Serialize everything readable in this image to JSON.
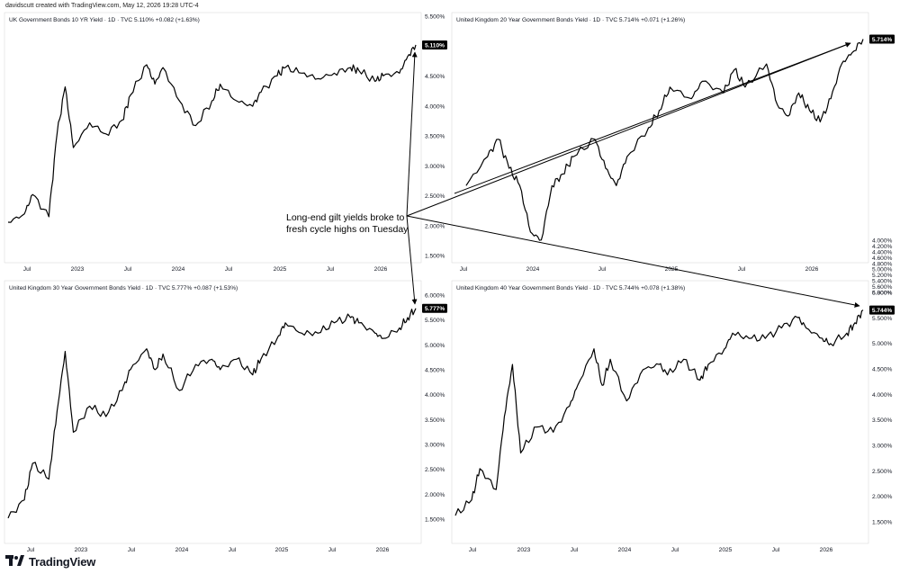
{
  "header": "davidscutt created with TradingView.com, May 12, 2026 19:28 UTC-4",
  "footer_brand": "TradingView",
  "annotation": [
    "Long-end gilt yields broke to",
    "fresh cycle highs on Tuesday"
  ],
  "colors": {
    "line": "#000000",
    "grid": "#e6e6e6",
    "badge_bg": "#000000",
    "badge_fg": "#ffffff",
    "text": "#131722"
  },
  "chart_data": [
    {
      "type": "line",
      "title": "UK Government Bonds 10 YR Yield · 1D · TVC  5.110%  +0.082 (+1.63%)",
      "x_ticks": [
        "Jul",
        "2023",
        "Jul",
        "2024",
        "Jul",
        "2025",
        "Jul",
        "2026"
      ],
      "y_ticks": [
        "5.500%",
        "5.000%",
        "4.500%",
        "4.000%",
        "3.500%",
        "3.000%",
        "2.500%",
        "2.000%",
        "1.500%"
      ],
      "ylim": [
        1.2,
        5.5
      ],
      "last_label": "5.110%",
      "x": [
        "2022-03",
        "2022-05",
        "2022-06",
        "2022-08",
        "2022-09",
        "2022-10",
        "2022-11",
        "2023-01",
        "2023-03",
        "2023-05",
        "2023-06",
        "2023-08",
        "2023-09",
        "2023-10",
        "2023-12",
        "2024-02",
        "2024-04",
        "2024-05",
        "2024-07",
        "2024-09",
        "2024-10",
        "2024-12",
        "2025-01",
        "2025-03",
        "2025-05",
        "2025-07",
        "2025-09",
        "2025-10",
        "2025-12",
        "2026-01",
        "2026-03",
        "2026-04",
        "2026-05"
      ],
      "values": [
        1.9,
        2.05,
        2.4,
        2.0,
        3.5,
        4.35,
        3.25,
        3.7,
        3.5,
        3.75,
        4.2,
        4.75,
        4.4,
        4.7,
        4.1,
        3.65,
        4.1,
        4.4,
        4.1,
        4.0,
        4.25,
        4.55,
        4.7,
        4.6,
        4.5,
        4.6,
        4.7,
        4.65,
        4.45,
        4.55,
        4.6,
        4.9,
        5.11
      ]
    },
    {
      "type": "line",
      "title": "United Kingdom 20 Year Government Bonds Yield · 1D · TVC  5.714%  +0.071 (+1.26%)",
      "x_ticks": [
        "Jul",
        "2024",
        "Jul",
        "2025",
        "Jul",
        "2026"
      ],
      "y_ticks": [
        "5.800%",
        "5.600%",
        "5.400%",
        "5.200%",
        "5.000%",
        "4.800%",
        "4.600%",
        "4.400%",
        "4.200%",
        "4.000%"
      ],
      "ylim": [
        3.8,
        5.85
      ],
      "last_label": "5.714%",
      "x": [
        "2023-04",
        "2023-06",
        "2023-07",
        "2023-08",
        "2023-09",
        "2023-10",
        "2023-11",
        "2023-12",
        "2024-01",
        "2024-02",
        "2024-04",
        "2024-05",
        "2024-06",
        "2024-07",
        "2024-09",
        "2024-10",
        "2024-11",
        "2025-01",
        "2025-02",
        "2025-04",
        "2025-05",
        "2025-06",
        "2025-08",
        "2025-09",
        "2025-10",
        "2025-11",
        "2025-12",
        "2026-01",
        "2026-02",
        "2026-03",
        "2026-04",
        "2026-05"
      ],
      "values": [
        4.45,
        4.7,
        4.85,
        4.6,
        4.45,
        4.05,
        3.98,
        4.45,
        4.55,
        4.7,
        4.85,
        4.6,
        4.45,
        4.7,
        4.95,
        5.1,
        5.3,
        5.2,
        5.35,
        5.25,
        5.45,
        5.3,
        5.5,
        5.15,
        5.05,
        5.25,
        5.1,
        5.0,
        5.2,
        5.5,
        5.6,
        5.714
      ]
    },
    {
      "type": "line",
      "title": "United Kingdom 30 Year Government Bonds Yield · 1D · TVC  5.777%  +0.087 (+1.53%)",
      "x_ticks": [
        "Jul",
        "2023",
        "Jul",
        "2024",
        "Jul",
        "2025",
        "Jul",
        "2026"
      ],
      "y_ticks": [
        "6.000%",
        "5.500%",
        "5.000%",
        "4.500%",
        "4.000%",
        "3.500%",
        "3.000%",
        "2.500%",
        "2.000%",
        "1.500%"
      ],
      "ylim": [
        1.3,
        6.1
      ],
      "last_label": "5.777%",
      "x": [
        "2022-03",
        "2022-05",
        "2022-06",
        "2022-08",
        "2022-09",
        "2022-10",
        "2022-11",
        "2023-01",
        "2023-03",
        "2023-05",
        "2023-06",
        "2023-08",
        "2023-09",
        "2023-10",
        "2023-12",
        "2024-02",
        "2024-04",
        "2024-05",
        "2024-07",
        "2024-09",
        "2024-10",
        "2024-12",
        "2025-01",
        "2025-03",
        "2025-05",
        "2025-07",
        "2025-09",
        "2025-10",
        "2025-12",
        "2026-01",
        "2026-03",
        "2026-04",
        "2026-05"
      ],
      "values": [
        1.75,
        2.1,
        2.8,
        2.5,
        3.8,
        4.95,
        3.4,
        3.9,
        3.7,
        4.2,
        4.6,
        5.0,
        4.6,
        4.9,
        4.2,
        4.7,
        4.8,
        4.6,
        4.8,
        4.5,
        4.8,
        5.2,
        5.5,
        5.3,
        5.3,
        5.5,
        5.6,
        5.5,
        5.3,
        5.2,
        5.4,
        5.6,
        5.777
      ]
    },
    {
      "type": "line",
      "title": "United Kingdom 40 Year Government Bonds Yield · 1D · TVC  5.744%  +0.078 (+1.38%)",
      "x_ticks": [
        "Jul",
        "2023",
        "Jul",
        "2024",
        "Jul",
        "2025",
        "Jul",
        "2026"
      ],
      "y_ticks": [
        "6.000%",
        "5.500%",
        "5.000%",
        "4.500%",
        "4.000%",
        "3.500%",
        "3.000%",
        "2.500%",
        "2.000%",
        "1.500%"
      ],
      "ylim": [
        1.3,
        6.1
      ],
      "last_label": "5.744%",
      "x": [
        "2022-03",
        "2022-05",
        "2022-06",
        "2022-08",
        "2022-09",
        "2022-10",
        "2022-11",
        "2023-01",
        "2023-03",
        "2023-05",
        "2023-06",
        "2023-08",
        "2023-09",
        "2023-10",
        "2023-12",
        "2024-02",
        "2024-04",
        "2024-05",
        "2024-07",
        "2024-09",
        "2024-10",
        "2024-12",
        "2025-01",
        "2025-03",
        "2025-05",
        "2025-07",
        "2025-09",
        "2025-10",
        "2025-12",
        "2026-01",
        "2026-03",
        "2026-04",
        "2026-05"
      ],
      "values": [
        1.8,
        2.1,
        2.7,
        2.3,
        3.7,
        4.7,
        3.0,
        3.5,
        3.4,
        3.9,
        4.3,
        5.0,
        4.3,
        4.8,
        4.0,
        4.6,
        4.7,
        4.5,
        4.8,
        4.4,
        4.7,
        5.0,
        5.3,
        5.2,
        5.2,
        5.4,
        5.6,
        5.4,
        5.2,
        5.1,
        5.3,
        5.5,
        5.744
      ]
    }
  ]
}
